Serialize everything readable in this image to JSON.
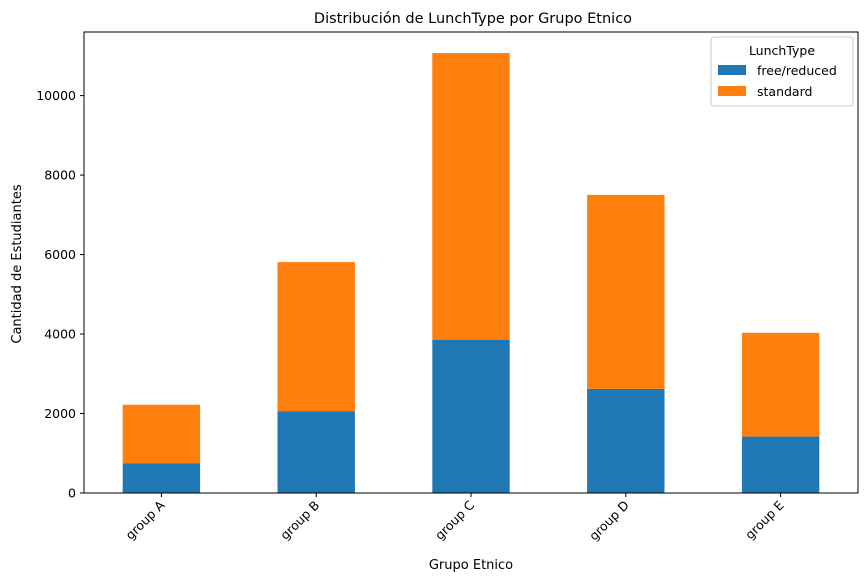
{
  "chart_data": {
    "type": "bar",
    "stacked": true,
    "title": "Distribución de LunchType por Grupo Etnico",
    "xlabel": "Grupo Etnico",
    "ylabel": "Cantidad de Estudiantes",
    "categories": [
      "group A",
      "group B",
      "group C",
      "group D",
      "group E"
    ],
    "series": [
      {
        "name": "free/reduced",
        "color": "#1f77b4",
        "values": [
          750,
          2060,
          3850,
          2620,
          1420
        ]
      },
      {
        "name": "standard",
        "color": "#ff7f0e",
        "values": [
          1470,
          3750,
          7220,
          4880,
          2610
        ]
      }
    ],
    "ylim": [
      0,
      11600
    ],
    "yticks": [
      0,
      2000,
      4000,
      6000,
      8000,
      10000
    ],
    "ytick_labels": [
      "0",
      "2000",
      "4000",
      "6000",
      "8000",
      "10000"
    ],
    "grid": false,
    "legend": {
      "title": "LunchType",
      "placement": "top-right"
    }
  }
}
